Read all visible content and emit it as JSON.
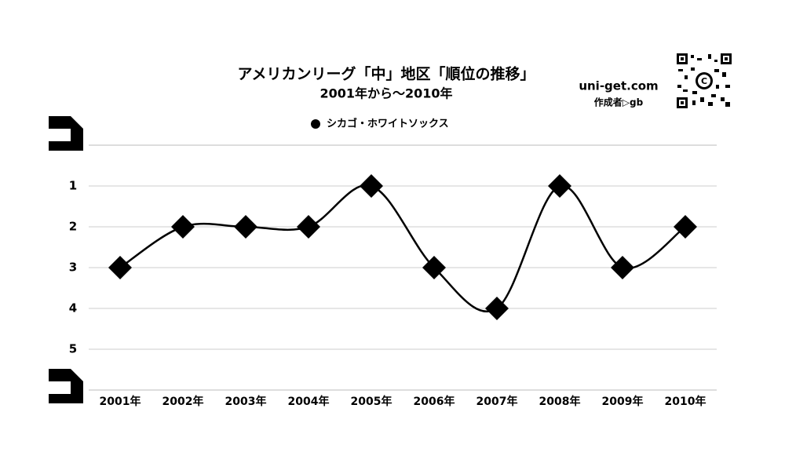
{
  "chart_data": {
    "type": "line",
    "title": "アメリカンリーグ「中」地区「順位の推移」",
    "subtitle": "2001年から～2010年",
    "credit_site": "uni-get.com",
    "credit_author": "作成者▷gb",
    "categories": [
      "2001年",
      "2002年",
      "2003年",
      "2004年",
      "2005年",
      "2006年",
      "2007年",
      "2008年",
      "2009年",
      "2010年"
    ],
    "series": [
      {
        "name": "シカゴ・ホワイトソックス",
        "color": "#000000",
        "values": [
          3,
          2,
          2,
          2,
          1,
          3,
          4,
          1,
          3,
          2
        ]
      }
    ],
    "ylim": [
      0,
      6
    ],
    "y_inverted": true,
    "yticks": [
      1,
      2,
      3,
      4,
      5
    ],
    "grid": true,
    "legend": "top"
  }
}
